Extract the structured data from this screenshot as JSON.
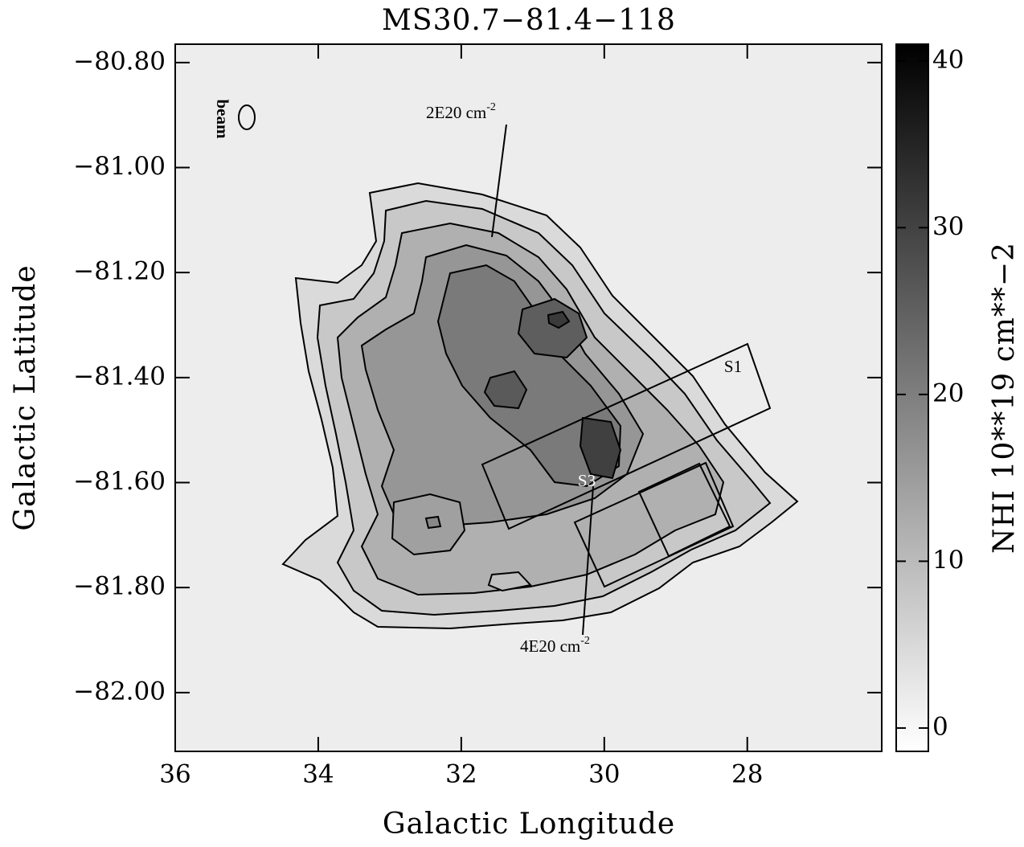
{
  "chart_data": {
    "type": "contour-map",
    "title": "MS30.7−81.4−118",
    "x_label": "Galactic Longitude",
    "y_label": "Galactic Latitude",
    "xlim": [
      36,
      26.12
    ],
    "xticks": [
      36,
      34,
      32,
      30,
      28
    ],
    "ylim": [
      -82.112,
      -80.765
    ],
    "yticks": [
      {
        "value": -80.8,
        "label": "−80.80"
      },
      {
        "value": -81.0,
        "label": "−81.00"
      },
      {
        "value": -81.2,
        "label": "−81.20"
      },
      {
        "value": -81.4,
        "label": "−81.40"
      },
      {
        "value": -81.6,
        "label": "−81.60"
      },
      {
        "value": -81.8,
        "label": "−81.80"
      },
      {
        "value": -82.0,
        "label": "−82.00"
      }
    ],
    "colorbar": {
      "label": "NHI 10**19 cm**−2",
      "clim": [
        -1.4,
        41
      ],
      "ticks": [
        0,
        10,
        20,
        30,
        40
      ]
    },
    "beam_label": "beam",
    "annotations": [
      {
        "text": "2E20 cm",
        "sup": "-2"
      },
      {
        "text": "4E20 cm",
        "sup": "-2"
      }
    ],
    "regions": [
      "S1",
      "S3"
    ]
  }
}
